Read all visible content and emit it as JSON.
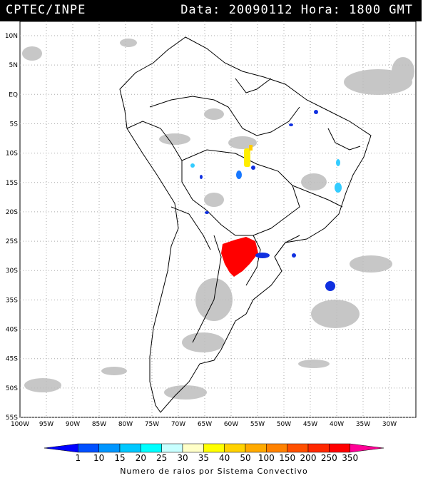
{
  "header": {
    "source": "CPTEC/INPE",
    "datetime": "Data: 20090112 Hora: 1800 GMT"
  },
  "map": {
    "lat_labels": [
      "10N",
      "5N",
      "EQ",
      "5S",
      "10S",
      "15S",
      "20S",
      "25S",
      "30S",
      "35S",
      "40S",
      "45S",
      "50S",
      "55S"
    ],
    "lon_labels": [
      "100W",
      "95W",
      "90W",
      "85W",
      "80W",
      "75W",
      "70W",
      "65W",
      "60W",
      "55W",
      "50W",
      "45W",
      "40W",
      "35W",
      "30W"
    ]
  },
  "legend": {
    "title": "Numero de raios por Sistema Convectivo",
    "values": [
      "1",
      "10",
      "15",
      "20",
      "25",
      "30",
      "35",
      "40",
      "50",
      "100",
      "150",
      "200",
      "250",
      "350"
    ],
    "colors": [
      "#0000ff",
      "#0050ff",
      "#0096ff",
      "#00c8ff",
      "#00ffff",
      "#c8ffff",
      "#ffffc8",
      "#ffff00",
      "#ffd200",
      "#ffaa00",
      "#ff8200",
      "#ff5000",
      "#ff2800",
      "#ff0000",
      "#ff0096"
    ]
  },
  "colors": {
    "header_bg": "#000000",
    "cloud": "#b4b4b4",
    "lightning_high": "#ff0000",
    "lightning_mid": "#ffee00",
    "lightning_low": "#1030e0"
  }
}
